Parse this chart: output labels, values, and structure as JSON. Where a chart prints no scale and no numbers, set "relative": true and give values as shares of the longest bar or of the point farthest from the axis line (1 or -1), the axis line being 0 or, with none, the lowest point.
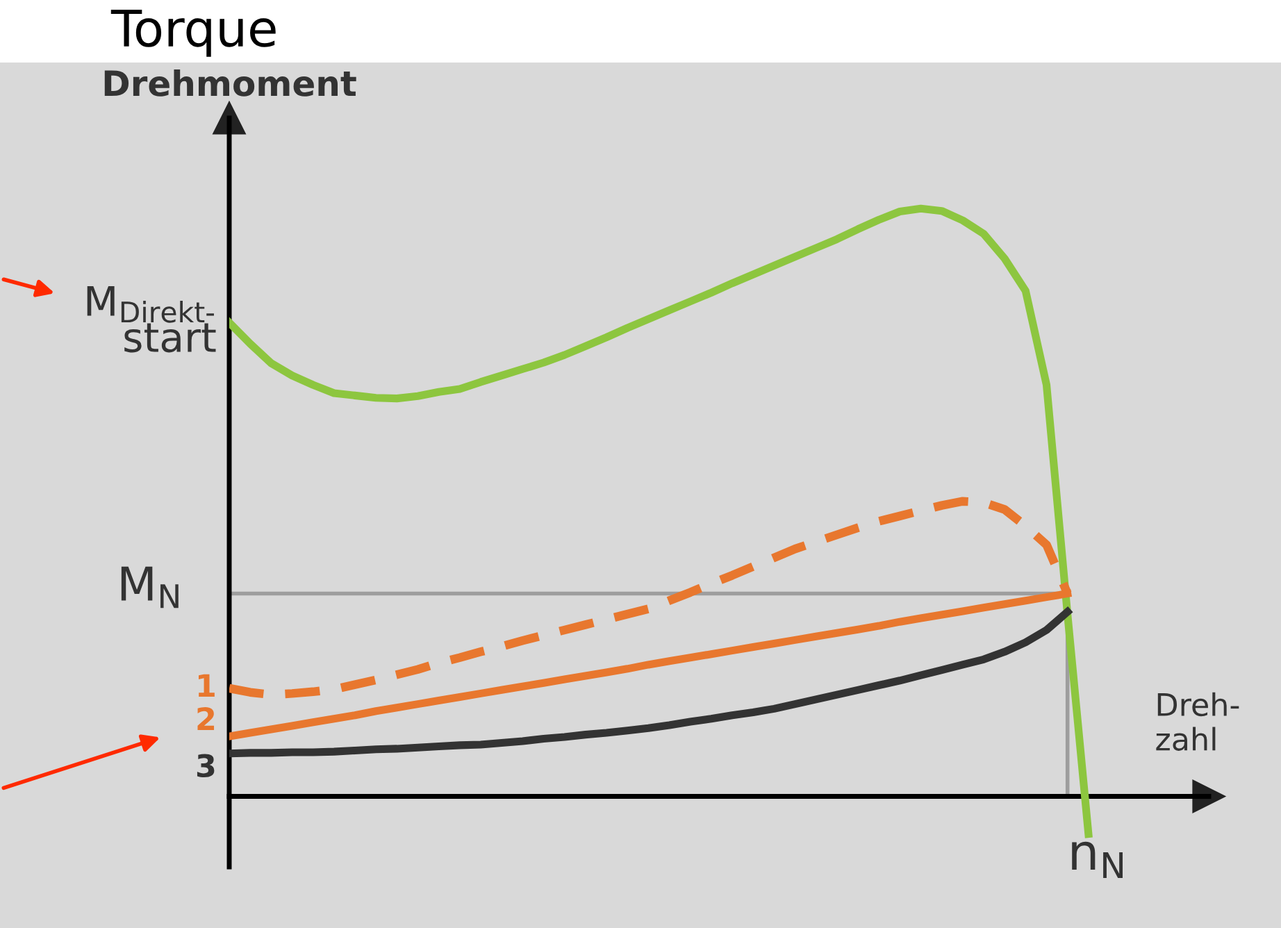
{
  "chart_data": {
    "type": "line",
    "title": "Torque",
    "ylabel": "Drehmoment",
    "xlabel": "Dreh-\nzahl",
    "relative": true,
    "legend": "left",
    "grid": false,
    "marker": "none",
    "categories": [
      null,
      null,
      null,
      null,
      null,
      null,
      null,
      null,
      null,
      null,
      null,
      null,
      null,
      null,
      null,
      null,
      null,
      null,
      null,
      null,
      null,
      null,
      null,
      null,
      null,
      null,
      null,
      null,
      null,
      null,
      null,
      null,
      null,
      null,
      null,
      null,
      null,
      null,
      null,
      null,
      null,
      null
    ],
    "annotations": [
      "M$_{Direkt‐}$\nstart",
      "n$_{N}$"
    ],
    "ref_lines": [
      {
        "axis": "y",
        "value": 0.345,
        "label": "M$_{N}$",
        "color": "#9e9e9e"
      }
    ],
    "series": [
      {
        "color": "#8dc63f",
        "line_style": "solid",
        "values": [
          0.806,
          0.77,
          0.737,
          0.716,
          0.7,
          0.686,
          0.682,
          0.678,
          0.677,
          0.681,
          0.688,
          0.693,
          0.705,
          0.716,
          0.727,
          0.738,
          0.751,
          0.766,
          0.781,
          0.797,
          0.812,
          0.827,
          0.842,
          0.857,
          0.873,
          0.888,
          0.903,
          0.918,
          0.933,
          0.948,
          0.965,
          0.981,
          0.995,
          1.0,
          0.996,
          0.98,
          0.957,
          0.915,
          0.86,
          0.7,
          0.31,
          -0.064
        ]
      },
      {
        "name": "1",
        "color": "#e8772e",
        "line_style": "dashed",
        "values": [
          0.184,
          0.177,
          0.173,
          0.175,
          0.178,
          0.182,
          0.19,
          0.198,
          0.207,
          0.216,
          0.227,
          0.236,
          0.246,
          0.255,
          0.265,
          0.274,
          0.283,
          0.292,
          0.301,
          0.31,
          0.319,
          0.333,
          0.347,
          0.362,
          0.376,
          0.391,
          0.406,
          0.421,
          0.433,
          0.445,
          0.457,
          0.468,
          0.477,
          0.486,
          0.495,
          0.502,
          0.5,
          0.488,
          0.46,
          0.428,
          0.345,
          null
        ]
      },
      {
        "name": "2",
        "color": "#e8772e",
        "line_style": "solid",
        "values": [
          0.102,
          0.108,
          0.114,
          0.12,
          0.126,
          0.132,
          0.138,
          0.145,
          0.151,
          0.157,
          0.163,
          0.169,
          0.175,
          0.181,
          0.187,
          0.193,
          0.199,
          0.205,
          0.211,
          0.217,
          0.224,
          0.23,
          0.236,
          0.242,
          0.248,
          0.254,
          0.26,
          0.266,
          0.272,
          0.278,
          0.284,
          0.29,
          0.297,
          0.303,
          0.309,
          0.315,
          0.321,
          0.327,
          0.333,
          0.339,
          0.345,
          null
        ]
      },
      {
        "name": "3",
        "color": "#333333",
        "line_style": "solid",
        "values": [
          0.073,
          0.074,
          0.074,
          0.075,
          0.075,
          0.076,
          0.078,
          0.08,
          0.081,
          0.083,
          0.085,
          0.087,
          0.088,
          0.091,
          0.094,
          0.098,
          0.101,
          0.105,
          0.108,
          0.112,
          0.116,
          0.121,
          0.127,
          0.132,
          0.138,
          0.143,
          0.149,
          0.157,
          0.165,
          0.173,
          0.181,
          0.189,
          0.197,
          0.206,
          0.215,
          0.224,
          0.233,
          0.246,
          0.262,
          0.283,
          0.314,
          null
        ]
      }
    ]
  }
}
